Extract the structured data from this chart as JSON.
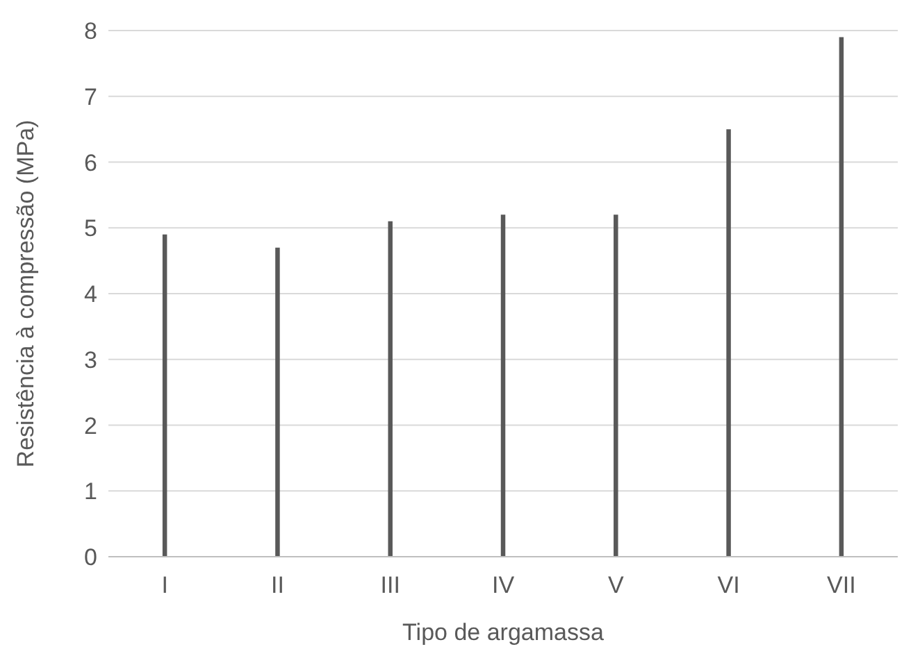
{
  "chart_data": {
    "type": "bar",
    "xlabel": "Tipo de argamassa",
    "ylabel": "Resistência à compressão (MPa)",
    "categories": [
      "I",
      "II",
      "III",
      "IV",
      "V",
      "VI",
      "VII"
    ],
    "values": [
      4.9,
      4.7,
      5.1,
      5.2,
      5.2,
      6.5,
      7.9
    ],
    "color": "#595959",
    "ylim": [
      0,
      8
    ],
    "yticks": [
      0,
      1,
      2,
      3,
      4,
      5,
      6,
      7,
      8
    ],
    "grid": "y",
    "legend": false
  }
}
